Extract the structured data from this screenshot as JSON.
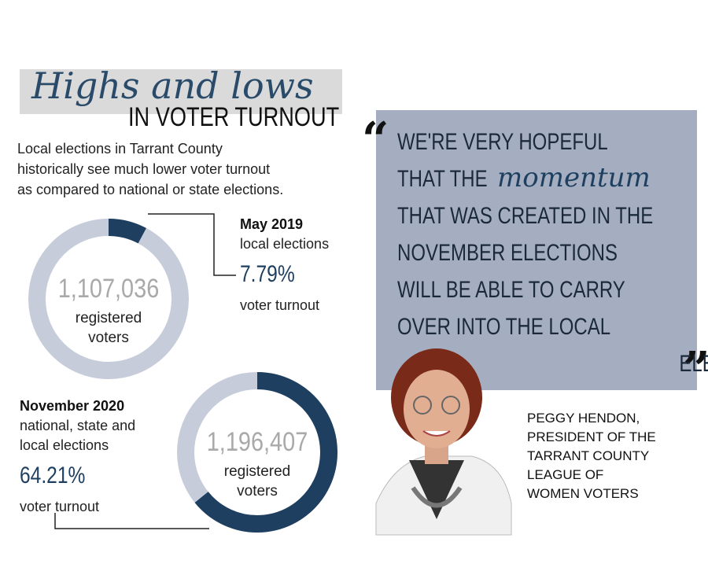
{
  "header": {
    "script": "Highs and lows",
    "subtitle": "IN VOTER TURNOUT"
  },
  "description": [
    "Local elections in Tarrant County",
    "historically see much lower voter turnout",
    "as compared to national or state elections."
  ],
  "chart_data": [
    {
      "type": "donut",
      "title": "May 2019",
      "subtitle": [
        "local elections"
      ],
      "values": [
        7.79
      ],
      "value_labels": [
        "7.79%"
      ],
      "caption": "voter turnout",
      "center_value": "1,107,036",
      "center_lines": [
        "registered",
        "voters"
      ],
      "color": "#1e3f5f",
      "track_color": "#c6ccd9"
    },
    {
      "type": "donut",
      "title": "November 2020",
      "subtitle": [
        "national, state and",
        "local elections"
      ],
      "values": [
        64.21
      ],
      "value_labels": [
        "64.21%"
      ],
      "caption": "voter turnout",
      "center_value": "1,196,407",
      "center_lines": [
        "registered",
        "voters"
      ],
      "color": "#1e3f5f",
      "track_color": "#c6ccd9"
    }
  ],
  "quote": {
    "lines": [
      "WE'RE VERY HOPEFUL",
      "THAT THE",
      "THAT WAS CREATED IN THE",
      "NOVEMBER ELECTIONS",
      "WILL BE ABLE TO CARRY",
      "OVER INTO THE LOCAL",
      "ELECTIONS IN MAY."
    ],
    "emphasis": "momentum"
  },
  "attribution": [
    "PEGGY HENDON,",
    "PRESIDENT OF THE",
    "TARRANT COUNTY",
    "LEAGUE OF",
    "WOMEN VOTERS"
  ]
}
